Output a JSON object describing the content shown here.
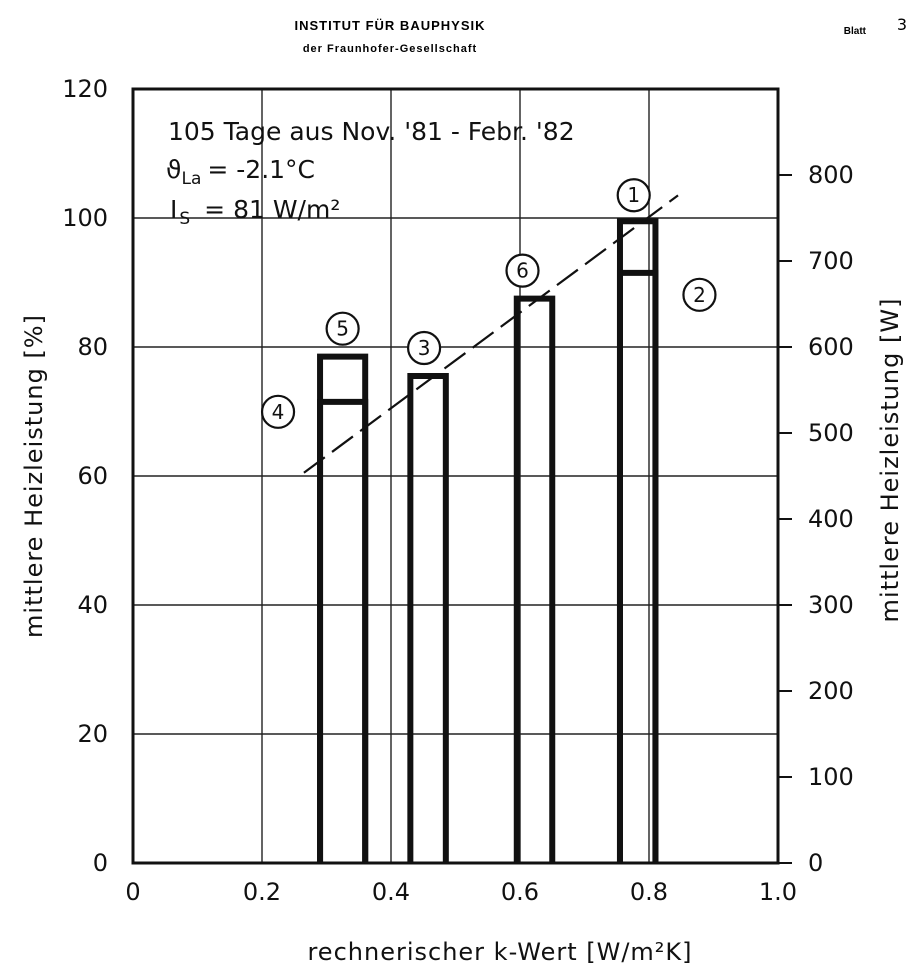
{
  "header": {
    "institute": "INSTITUT FÜR BAUPHYSIK",
    "society": "der Fraunhofer-Gesellschaft",
    "sheet_label": "Blatt",
    "sheet_number": "3"
  },
  "chart_data": {
    "type": "bar",
    "xlabel": "rechnerischer k-Wert [W/m²K]",
    "ylabel_left": "mittlere Heizleistung [%]",
    "ylabel_right": "mittlere Heizleistung [W]",
    "xlim": [
      0,
      1.0
    ],
    "ylim_left": [
      0,
      120
    ],
    "ylim_right": [
      0,
      900
    ],
    "x_ticks": [
      "0",
      "0.2",
      "0.4",
      "0.6",
      "0.8",
      "1.0"
    ],
    "y_ticks_left": [
      "0",
      "20",
      "40",
      "60",
      "80",
      "100",
      "120"
    ],
    "y_ticks_right": [
      "0",
      "100",
      "200",
      "300",
      "400",
      "500",
      "600",
      "700",
      "800"
    ],
    "grid": true,
    "annotation": {
      "line1": "105 Tage aus Nov. '81 - Febr. '82",
      "line2_symbol": "ϑ",
      "line2_sub": "La",
      "line2_rest": "= -2.1°C",
      "line3_symbol": "I",
      "line3_sub": "S",
      "line3_rest": "= 81 W/m²"
    },
    "bars": [
      {
        "label": "4",
        "x_left": 0.29,
        "x_right": 0.36,
        "value": 71.5
      },
      {
        "label": "5",
        "x_left": 0.29,
        "x_right": 0.36,
        "value": 78.5
      },
      {
        "label": "3",
        "x_left": 0.43,
        "x_right": 0.485,
        "value": 75.5
      },
      {
        "label": "6",
        "x_left": 0.595,
        "x_right": 0.65,
        "value": 87.5
      },
      {
        "label": "2",
        "x_left": 0.755,
        "x_right": 0.81,
        "value": 91.5
      },
      {
        "label": "1",
        "x_left": 0.755,
        "x_right": 0.81,
        "value": 99.5
      }
    ],
    "trend_line": {
      "x": [
        0.265,
        0.845
      ],
      "y": [
        60.5,
        103.5
      ],
      "style": "dashed"
    }
  }
}
